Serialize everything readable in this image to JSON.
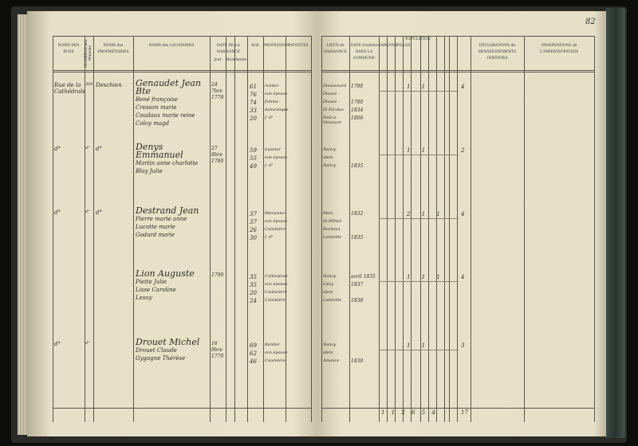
{
  "page_number": "82",
  "left_headers": [
    "NOMS DES RUES",
    "NUMÉROS des Maisons",
    "NOMS des PROPRIÉTAIRES",
    "NOMS des LOCATAIRES",
    "DATE DE LA NAISSANCE",
    "Jour",
    "Mois",
    "Année",
    "AGE",
    "PROFESSION",
    "PATENTES"
  ],
  "right_headers": [
    "LIEUX de NAISSANCE",
    "DATE d'entrée DANS LA COMMUNE",
    "POPULATION",
    "GARÇONS",
    "FILLES",
    "DÉCLARATIONS de RENSEIGNEMENTS CERTIFIÉS",
    "OBSERVATIONS de L'ADMINISTRATION"
  ],
  "entries": [
    {
      "street": "Rue de la Cathédrale",
      "number": "388",
      "proprietor": "Deschien",
      "tenants": [
        "Genaudet Jean Bte",
        "Bené françoise",
        "Cresson marie",
        "Coudaux marie reine",
        "Coloy magd"
      ],
      "birth": [
        "24",
        "7bre",
        "1778"
      ],
      "ages": [
        "61",
        "76",
        "74",
        "33",
        "20"
      ],
      "professions": [
        "rentier",
        "son épouse",
        "femme",
        "domestique",
        "f. d°"
      ],
      "places": [
        "Dieuzenard",
        "Dieuze",
        "Dieuze",
        "St Nicolas",
        "Pont-à-Mousson"
      ],
      "entry_dates": [
        "1780",
        "",
        "1780",
        "1834",
        "1806"
      ],
      "population": "1 1",
      "total": "4"
    },
    {
      "street": "d°",
      "number": "d°",
      "proprietor": "d°",
      "tenants": [
        "Denys Emmanuel",
        "Martin anne charlotte",
        "Bloy Julie"
      ],
      "birth": [
        "27",
        "8bre",
        "1780"
      ],
      "ages": [
        "59",
        "55",
        "49"
      ],
      "professions": [
        "huissier",
        "son épouse",
        "f. d°"
      ],
      "places": [
        "Nancy",
        "idem",
        "Nancy"
      ],
      "entry_dates": [
        "",
        "",
        "1835"
      ],
      "population": "1 1",
      "total": "2"
    },
    {
      "street": "d°",
      "number": "d°",
      "proprietor": "d°",
      "tenants": [
        "Destrand Jean",
        "Pierre marie anne",
        "Lucotte marie",
        "Godard marie"
      ],
      "birth": [
        "",
        "",
        ""
      ],
      "ages": [
        "37",
        "37",
        "26",
        "30"
      ],
      "professions": [
        "Menuisier",
        "son épouse",
        "Cuisinière",
        "f. d°"
      ],
      "places": [
        "Metz",
        "St Mihiel",
        "Rocheux",
        "Lunéville"
      ],
      "entry_dates": [
        "1832",
        "",
        "",
        "1835"
      ],
      "population": "2 1 1",
      "total": "4"
    },
    {
      "street": "",
      "number": "",
      "proprietor": "",
      "tenants": [
        "Lion Auguste",
        "Piette Julie",
        "Lisse Caroline",
        "Lesoy"
      ],
      "birth": [
        "",
        "",
        "1798"
      ],
      "ages": [
        "35",
        "35",
        "20",
        "24"
      ],
      "professions": [
        "Cultivateur",
        "son épouse",
        "Couturière",
        "Cuisinière"
      ],
      "places": [
        "Nancy",
        "Liézy",
        "idem",
        "Lunéville"
      ],
      "entry_dates": [
        "avril 1835",
        "1837",
        "",
        "1838"
      ],
      "population": "1 1 1",
      "total": "4"
    },
    {
      "street": "d°",
      "number": "d°",
      "proprietor": "",
      "tenants": [
        "Drouet Michel",
        "Drouet Claude",
        "Gygogne Thérèse"
      ],
      "birth": [
        "16",
        "8bre",
        "1770"
      ],
      "ages": [
        "69",
        "62",
        "46"
      ],
      "professions": [
        "Rentier",
        "son épouse",
        "Cuisinière"
      ],
      "places": [
        "Nancy",
        "idem",
        "Amance"
      ],
      "entry_dates": [
        "",
        "",
        "1830"
      ],
      "population": "1 1",
      "total": "3"
    }
  ],
  "totals": {
    "population": "1 1 2 6 5 4",
    "total": "17"
  }
}
